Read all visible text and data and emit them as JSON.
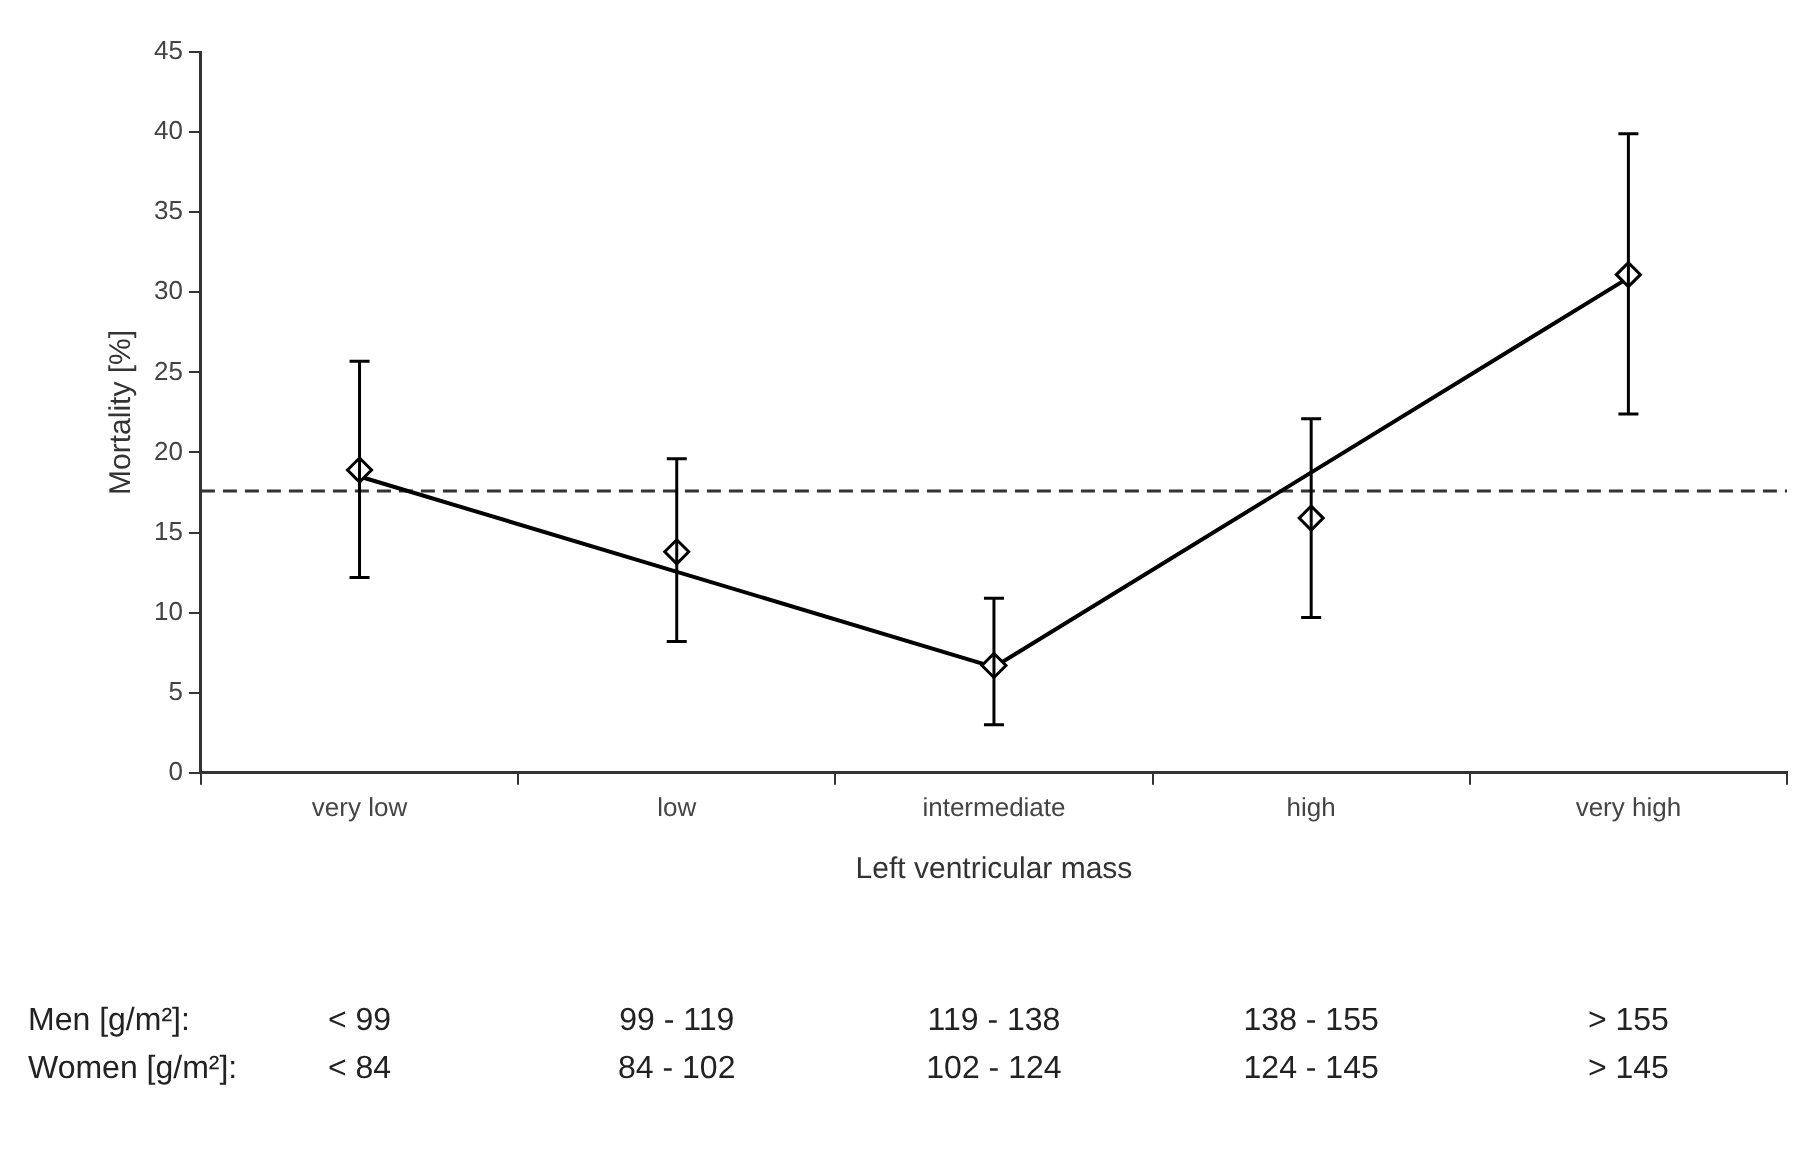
{
  "chart_data": {
    "type": "line",
    "xlabel": "Left ventricular mass",
    "ylabel": "Mortality [%]",
    "categories": [
      "very low",
      "low",
      "intermediate",
      "high",
      "very high"
    ],
    "series": [
      {
        "type": "scatter",
        "color": "#000000",
        "marker": "diamond",
        "values": [
          18.9,
          13.8,
          6.7,
          15.9,
          31.1
        ],
        "errors": [
          [
            12.2,
            25.7
          ],
          [
            8.2,
            19.6
          ],
          [
            3,
            10.9
          ],
          [
            9.7,
            22.1
          ],
          [
            22.4,
            39.9
          ]
        ]
      },
      {
        "type": "line",
        "color": "#000000",
        "marker": "none",
        "line_style": "solid",
        "values": [
          18.5,
          null,
          6.6,
          null,
          30.9
        ]
      }
    ],
    "ylim": [
      0,
      45
    ],
    "yticks": [
      0,
      5,
      10,
      15,
      20,
      25,
      30,
      35,
      40,
      45
    ],
    "ref_lines": [
      {
        "axis": "y",
        "value": 17.6,
        "line_style": "dashed",
        "color": "#333333"
      }
    ],
    "annotations": [
      "Men [g/m²]:",
      "< 99",
      "99 - 119",
      "119 - 138",
      "138 - 155",
      "> 155",
      "Women [g/m²]:",
      "< 84",
      "84 - 102",
      "102 - 124",
      "124 - 145",
      "> 145"
    ]
  }
}
